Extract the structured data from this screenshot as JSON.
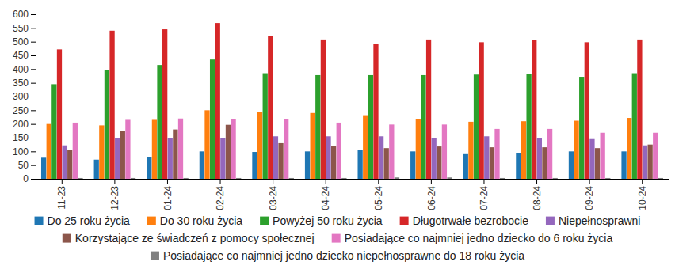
{
  "chart_data": {
    "type": "bar",
    "categories": [
      "11-23",
      "12-23",
      "01-24",
      "02-24",
      "03-24",
      "04-24",
      "05-24",
      "06-24",
      "07-24",
      "08-24",
      "09-24",
      "10-24"
    ],
    "series": [
      {
        "name": "Do 25 roku życia",
        "color": "#1f77b4",
        "values": [
          77,
          70,
          78,
          100,
          98,
          100,
          105,
          100,
          90,
          95,
          100,
          100
        ]
      },
      {
        "name": "Do 30 roku życia",
        "color": "#ff7f0e",
        "values": [
          200,
          195,
          215,
          250,
          245,
          240,
          232,
          218,
          208,
          210,
          212,
          222
        ]
      },
      {
        "name": "Powyżej 50 roku życia",
        "color": "#2ca02c",
        "values": [
          345,
          398,
          415,
          435,
          385,
          378,
          378,
          378,
          380,
          382,
          372,
          385
        ]
      },
      {
        "name": "Długotrwałe bezrobocie",
        "color": "#d62728",
        "values": [
          472,
          540,
          545,
          568,
          522,
          508,
          492,
          508,
          498,
          505,
          498,
          508
        ]
      },
      {
        "name": "Niepełnosprawni",
        "color": "#9467bd",
        "values": [
          122,
          148,
          150,
          150,
          155,
          155,
          155,
          150,
          155,
          148,
          145,
          122
        ]
      },
      {
        "name": "Korzystające ze świadczeń z pomocy społecznej",
        "color": "#8c564b",
        "values": [
          105,
          175,
          180,
          197,
          130,
          120,
          112,
          118,
          115,
          115,
          112,
          125
        ]
      },
      {
        "name": "Posiadające co najmniej jedno dziecko do 6 roku życia",
        "color": "#e377c2",
        "values": [
          205,
          215,
          220,
          218,
          218,
          205,
          198,
          198,
          182,
          182,
          168,
          168
        ]
      },
      {
        "name": "Posiadające co najmniej jedno dziecko niepełnosprawne do 18 roku życia",
        "color": "#7f7f7f",
        "values": [
          3,
          3,
          3,
          3,
          3,
          3,
          5,
          5,
          3,
          3,
          3,
          3
        ]
      }
    ],
    "ylim": [
      0,
      600
    ],
    "yticks": [
      0,
      50,
      100,
      150,
      200,
      250,
      300,
      350,
      400,
      450,
      500,
      550,
      600
    ],
    "grid": false,
    "legend": "bottom"
  }
}
